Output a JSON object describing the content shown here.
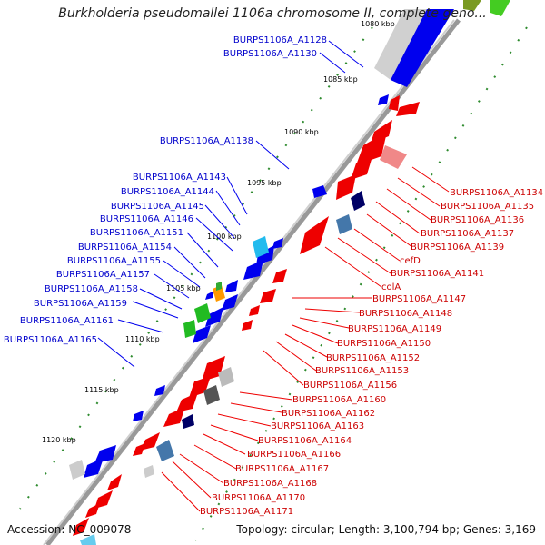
{
  "title": "Burkholderia pseudomallei 1106a chromosome II, complete geno...",
  "accession": "Accession: NC_009078",
  "summary": "Topology: circular; Length: 3,100,794 bp; Genes: 3,169",
  "ticks": [
    "1080 kbp",
    "1085 kbp",
    "1090 kbp",
    "1095 kbp",
    "1100 kbp",
    "1105 kbp",
    "1110 kbp",
    "1115 kbp",
    "1120 kbp"
  ],
  "blue_labels": [
    "BURPS1106A_A1128",
    "BURPS1106A_A1130",
    "BURPS1106A_A1138",
    "BURPS1106A_A1143",
    "BURPS1106A_A1144",
    "BURPS1106A_A1145",
    "BURPS1106A_A1146",
    "BURPS1106A_A1151",
    "BURPS1106A_A1154",
    "BURPS1106A_A1155",
    "BURPS1106A_A1157",
    "BURPS1106A_A1158",
    "BURPS1106A_A1159",
    "BURPS1106A_A1161",
    "BURPS1106A_A1165"
  ],
  "red_labels": [
    "BURPS1106A_A1134",
    "BURPS1106A_A1135",
    "BURPS1106A_A1136",
    "BURPS1106A_A1137",
    "BURPS1106A_A1139",
    "cefD",
    "BURPS1106A_A1141",
    "colA",
    "BURPS1106A_A1147",
    "BURPS1106A_A1148",
    "BURPS1106A_A1149",
    "BURPS1106A_A1150",
    "BURPS1106A_A1152",
    "BURPS1106A_A1153",
    "BURPS1106A_A1156",
    "BURPS1106A_A1160",
    "BURPS1106A_A1162",
    "BURPS1106A_A1163",
    "BURPS1106A_A1164",
    "BURPS1106A_A1166",
    "BURPS1106A_A1167",
    "BURPS1106A_A1168",
    "BURPS1106A_A1170",
    "BURPS1106A_A1171"
  ],
  "colors": {
    "forward": "#0000ee",
    "reverse": "#ee0000",
    "backbone": "#888888",
    "ticks": "#2e8b2e",
    "blue_text": "#0000cc",
    "red_text": "#cc0000"
  }
}
